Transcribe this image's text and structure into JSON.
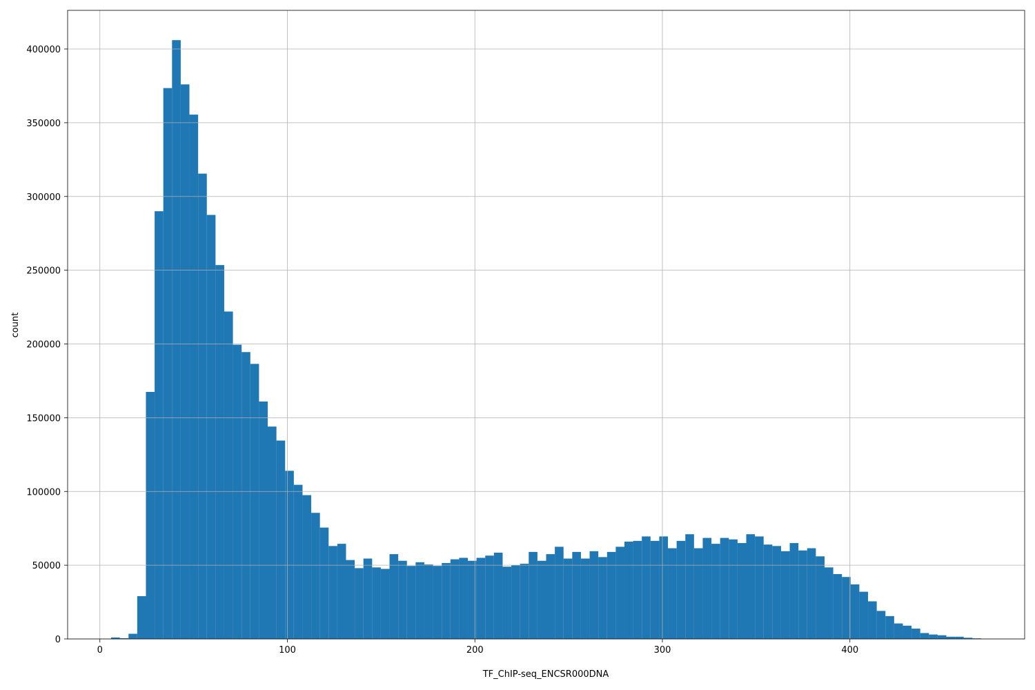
{
  "chart_data": {
    "type": "histogram",
    "xlabel": "TF_ChIP-seq_ENCSR000DNA",
    "ylabel": "count",
    "color": "#1f77b4",
    "grid": true,
    "xlim": [
      -17.2,
      493.2
    ],
    "ylim": [
      0,
      426200
    ],
    "xticks": [
      0,
      100,
      200,
      300,
      400
    ],
    "yticks": [
      0,
      50000,
      100000,
      150000,
      200000,
      250000,
      300000,
      350000,
      400000
    ],
    "bins": [
      6,
      10.64,
      15.28,
      19.92,
      24.56,
      29.2,
      33.84,
      38.48,
      43.12,
      47.76,
      52.4,
      57.04,
      61.68,
      66.32,
      70.96,
      75.6,
      80.24,
      84.88,
      89.52,
      94.16,
      98.8,
      103.44,
      108.08,
      112.72,
      117.36,
      122,
      126.64,
      131.28,
      135.92,
      140.56,
      145.2,
      149.84,
      154.48,
      159.12,
      163.76,
      168.4,
      173.04,
      177.68,
      182.32,
      186.96,
      191.6,
      196.24,
      200.88,
      205.52,
      210.16,
      214.8,
      219.44,
      224.08,
      228.72,
      233.36,
      238,
      242.64,
      247.28,
      251.92,
      256.56,
      261.2,
      265.84,
      270.48,
      275.12,
      279.76,
      284.4,
      289.04,
      293.68,
      298.32,
      302.96,
      307.6,
      312.24,
      316.88,
      321.52,
      326.16,
      330.8,
      335.44,
      340.08,
      344.72,
      349.36,
      354,
      358.64,
      363.28,
      367.92,
      372.56,
      377.2,
      381.84,
      386.48,
      391.12,
      395.76,
      400.4,
      405.04,
      409.68,
      414.32,
      418.96,
      423.6,
      428.24,
      432.88,
      437.52,
      442.16,
      446.8,
      451.44,
      456.08,
      460.72,
      465.36,
      470
    ],
    "values": [
      1000,
      500,
      3500,
      29000,
      167500,
      290000,
      373500,
      406000,
      376000,
      355500,
      315500,
      287500,
      253500,
      222000,
      199500,
      194500,
      186500,
      161000,
      144000,
      134500,
      114000,
      104500,
      97500,
      85500,
      75500,
      63000,
      64500,
      53500,
      48000,
      54500,
      48500,
      47500,
      57500,
      53000,
      49500,
      52000,
      50500,
      49500,
      51500,
      54000,
      55000,
      53000,
      55000,
      56500,
      58500,
      49000,
      50000,
      51000,
      59000,
      53000,
      57500,
      62500,
      54500,
      59000,
      54500,
      59500,
      55500,
      59000,
      62500,
      66000,
      66500,
      69500,
      66500,
      69500,
      61500,
      66500,
      71000,
      61500,
      68500,
      64500,
      68500,
      67500,
      65000,
      71000,
      69500,
      64000,
      63000,
      59500,
      65000,
      60000,
      61500,
      56000,
      48500,
      44000,
      42000,
      37000,
      32000,
      25500,
      19000,
      15500,
      10500,
      9000,
      7000,
      4000,
      3000,
      2500,
      1500,
      1500,
      800,
      400
    ]
  }
}
